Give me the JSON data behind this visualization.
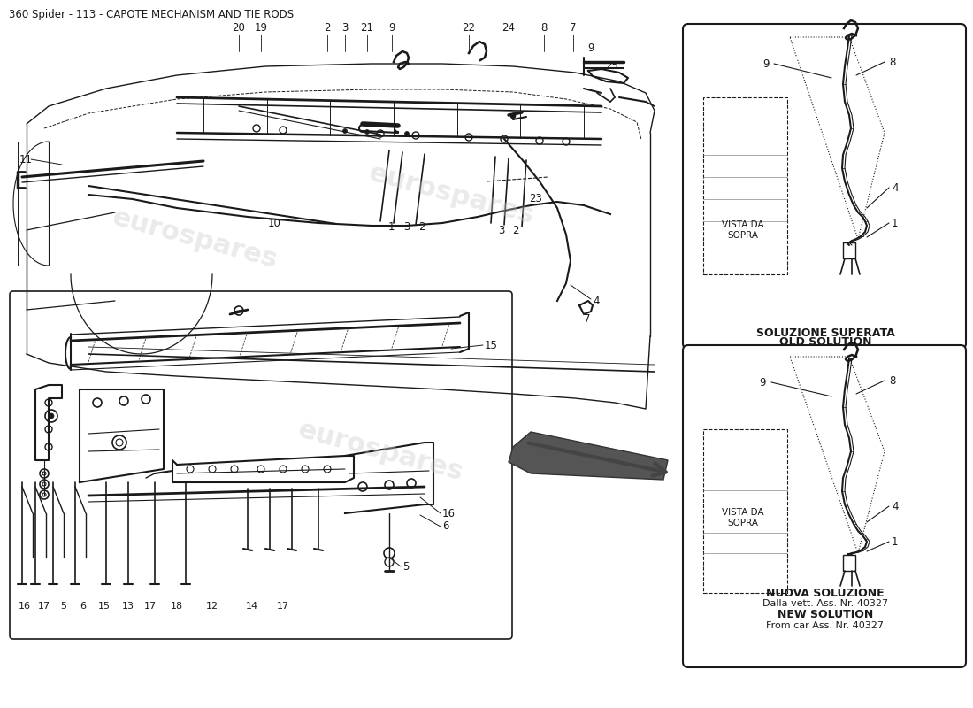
{
  "title": "360 Spider - 113 - CAPOTE MECHANISM AND TIE RODS",
  "bg_color": "#ffffff",
  "line_color": "#1a1a1a",
  "title_fontsize": 8.5,
  "old_solution_title": "SOLUZIONE SUPERATA\nOLD SOLUTION",
  "new_solution_title": "NUOVA SOLUZIONE\nDalla vett. Ass. Nr. 40327\nNEW SOLUTION\nFrom car Ass. Nr. 40327",
  "vista_da_sopra": "VISTA DA\nSOPRA",
  "watermark": "eurospares",
  "fig_w": 11.0,
  "fig_h": 8.0
}
